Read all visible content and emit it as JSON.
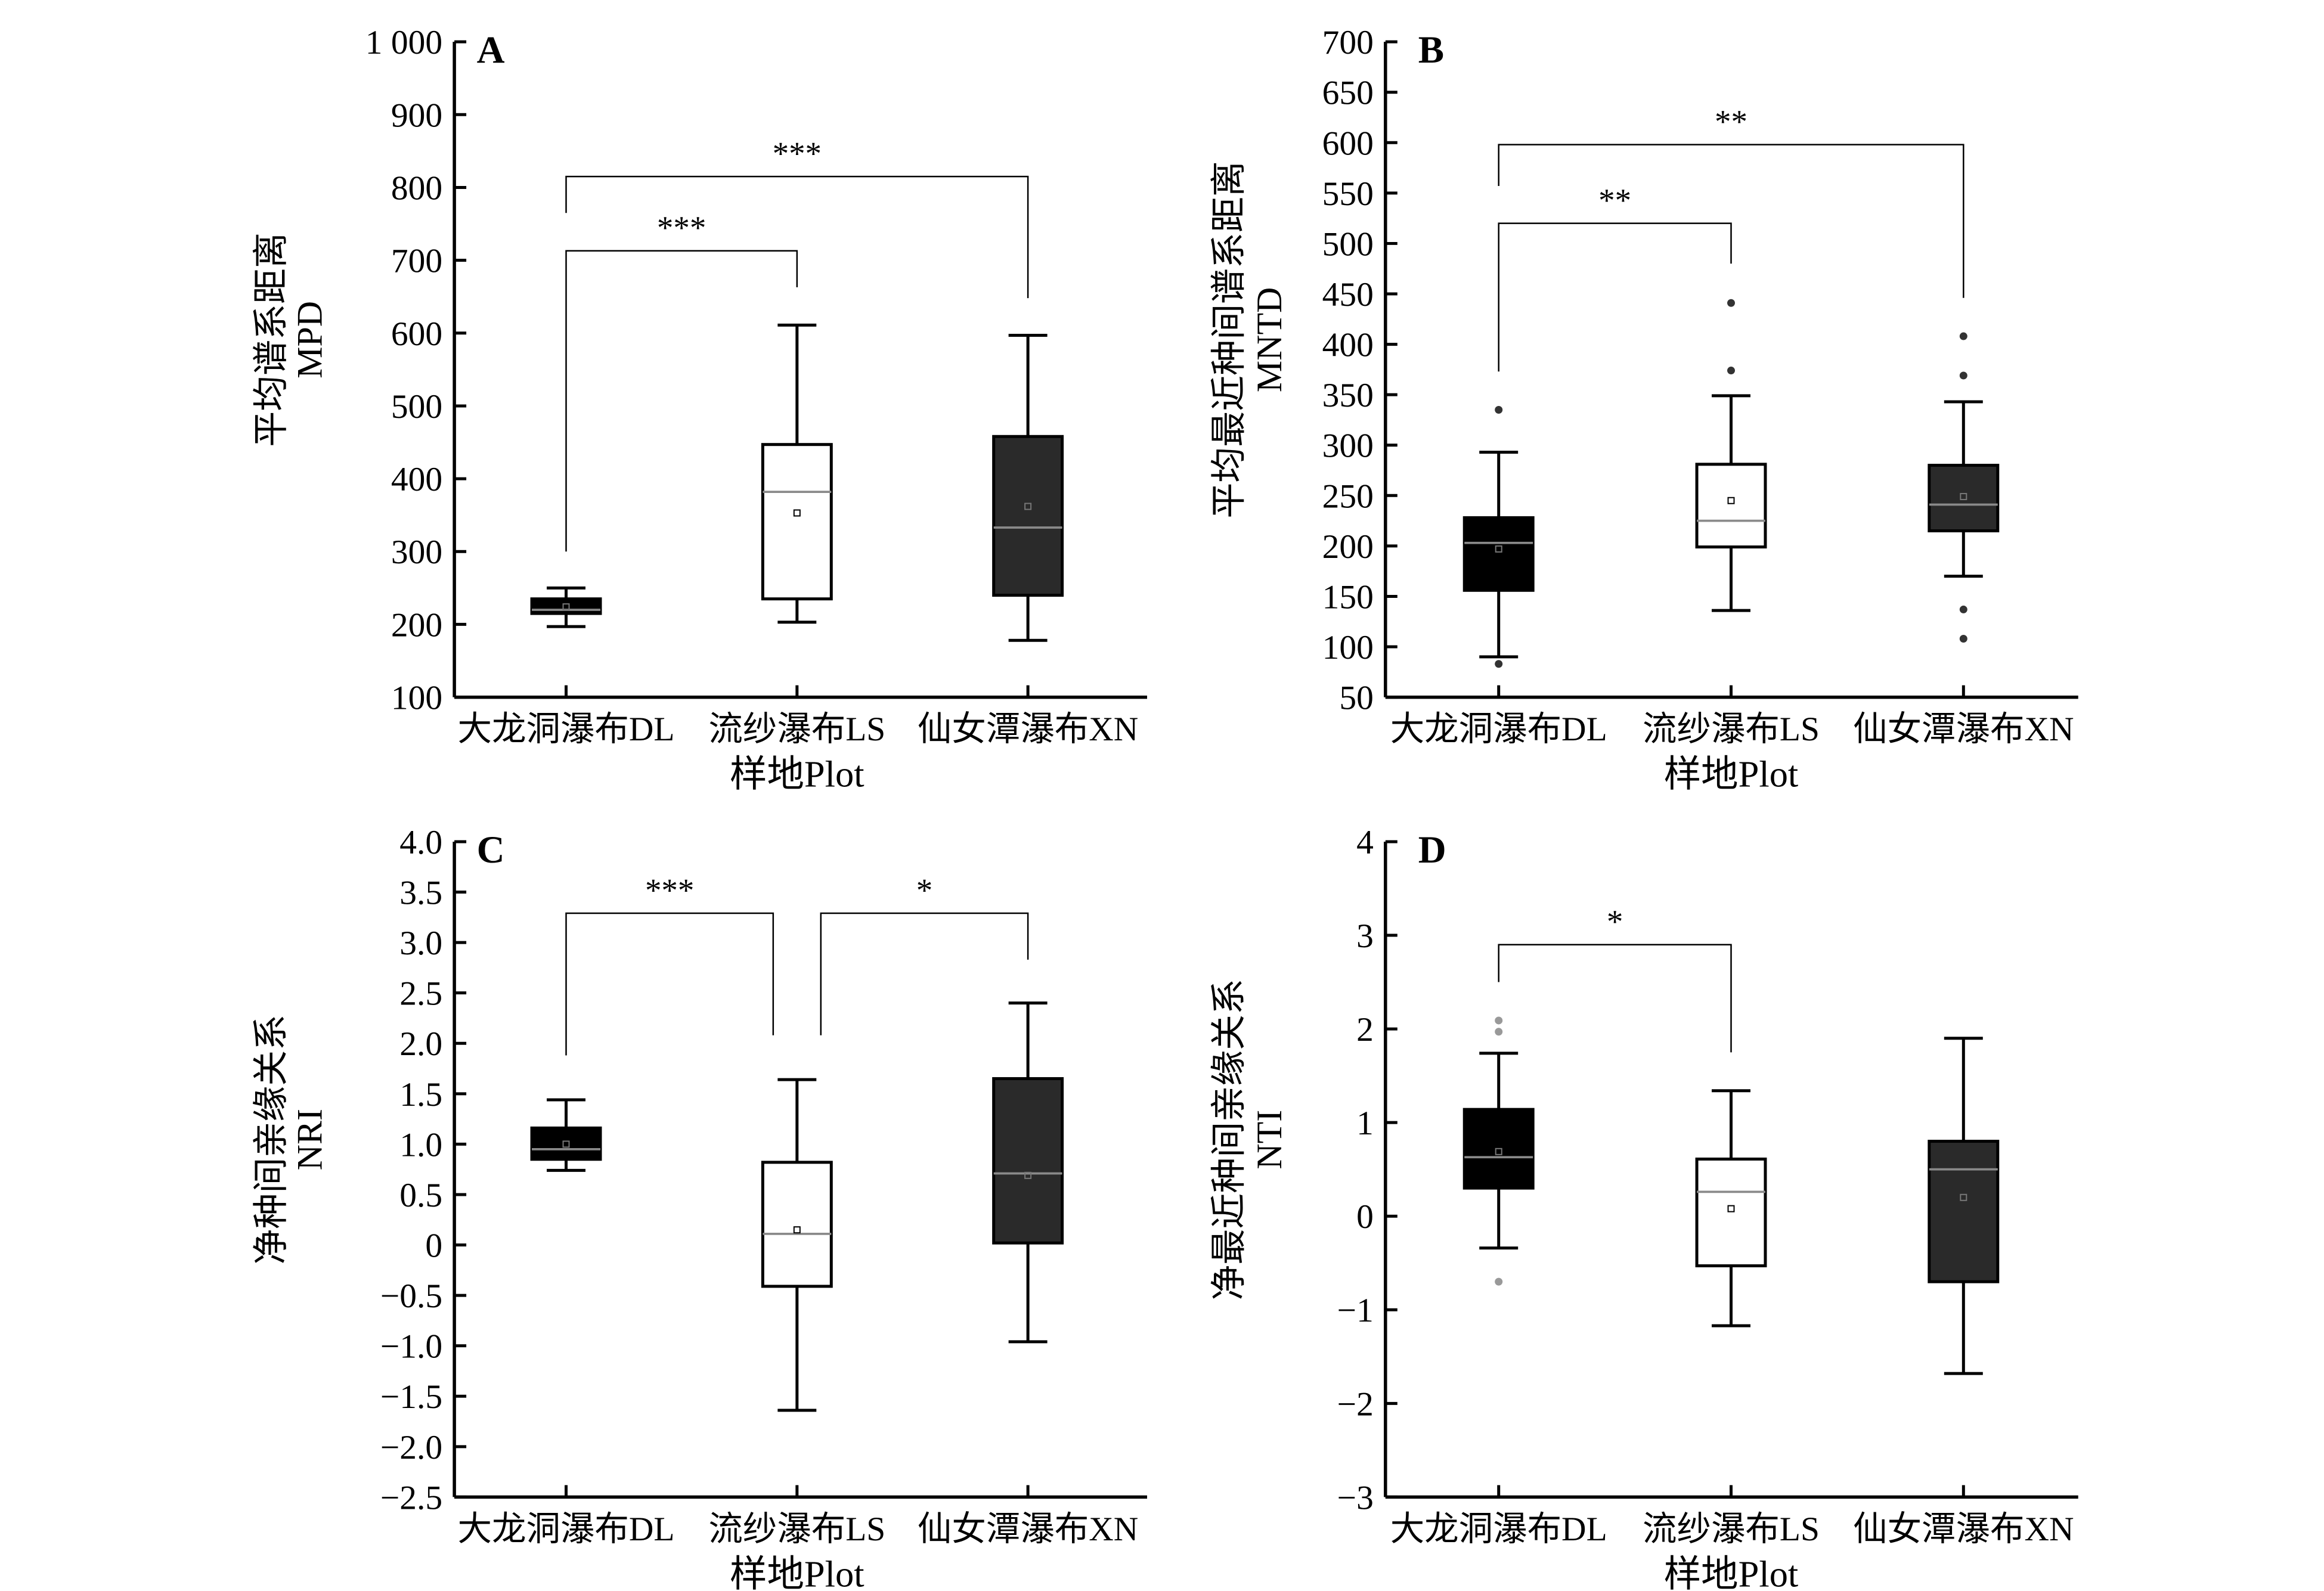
{
  "chart_data": [
    {
      "type": "box",
      "panel_label": "A",
      "ylabel": [
        "平均谱系距离",
        "MPD"
      ],
      "xlabel": "样地Plot",
      "categories": [
        "大龙洞瀑布DL",
        "流纱瀑布LS",
        "仙女潭瀑布XN"
      ],
      "ylim": [
        100,
        1000
      ],
      "yticks": [
        100,
        200,
        300,
        400,
        500,
        600,
        700,
        800,
        900,
        1000
      ],
      "ytick_labels": [
        "100",
        "200",
        "300",
        "400",
        "500",
        "600",
        "700",
        "800",
        "900",
        "1 000"
      ],
      "boxes": [
        {
          "min": 197,
          "q1": 215,
          "median": 220,
          "q3": 235,
          "max": 250,
          "mean": 224,
          "outliers": []
        },
        {
          "min": 203,
          "q1": 235,
          "median": 382,
          "q3": 447,
          "max": 611,
          "mean": 353,
          "outliers": []
        },
        {
          "min": 178,
          "q1": 240,
          "median": 333,
          "q3": 458,
          "max": 597,
          "mean": 362,
          "outliers": []
        }
      ],
      "brackets": [
        {
          "from": 0,
          "to": 1,
          "y": 713,
          "left_end": 300,
          "right_end": 663,
          "label": "***"
        },
        {
          "from": 0,
          "to": 2,
          "y": 815,
          "left_end": 765,
          "right_end": 648,
          "label": "***"
        }
      ]
    },
    {
      "type": "box",
      "panel_label": "B",
      "ylabel": [
        "平均最近种间谱系距离",
        "MNTD"
      ],
      "xlabel": "样地Plot",
      "categories": [
        "大龙洞瀑布DL",
        "流纱瀑布LS",
        "仙女潭瀑布XN"
      ],
      "ylim": [
        50,
        700
      ],
      "yticks": [
        50,
        100,
        150,
        200,
        250,
        300,
        350,
        400,
        450,
        500,
        550,
        600,
        650,
        700
      ],
      "ytick_labels": [
        "50",
        "100",
        "150",
        "200",
        "250",
        "300",
        "350",
        "400",
        "450",
        "500",
        "550",
        "600",
        "650",
        "700"
      ],
      "boxes": [
        {
          "min": 90,
          "q1": 156,
          "median": 203,
          "q3": 228,
          "max": 293,
          "mean": 197,
          "outliers": [
            335,
            83
          ]
        },
        {
          "min": 136,
          "q1": 199,
          "median": 225,
          "q3": 281,
          "max": 349,
          "mean": 245,
          "outliers": [
            441,
            374
          ]
        },
        {
          "min": 170,
          "q1": 215,
          "median": 241,
          "q3": 280,
          "max": 343,
          "mean": 249,
          "outliers": [
            408,
            369,
            137,
            108
          ]
        }
      ],
      "brackets": [
        {
          "from": 0,
          "to": 1,
          "y": 520,
          "left_end": 373,
          "right_end": 480,
          "label": "**"
        },
        {
          "from": 0,
          "to": 2,
          "y": 598,
          "left_end": 557,
          "right_end": 446,
          "label": "**"
        }
      ]
    },
    {
      "type": "box",
      "panel_label": "C",
      "ylabel": [
        "净种间亲缘关系",
        "NRI"
      ],
      "xlabel": "样地Plot",
      "categories": [
        "大龙洞瀑布DL",
        "流纱瀑布LS",
        "仙女潭瀑布XN"
      ],
      "ylim": [
        -2.5,
        4.0
      ],
      "yticks": [
        -2.5,
        -2.0,
        -1.5,
        -1.0,
        -0.5,
        0,
        0.5,
        1.0,
        1.5,
        2.0,
        2.5,
        3.0,
        3.5,
        4.0
      ],
      "ytick_labels": [
        "−2.5",
        "−2.0",
        "−1.5",
        "−1.0",
        "−0.5",
        "0",
        "0.5",
        "1.0",
        "1.5",
        "2.0",
        "2.5",
        "3.0",
        "3.5",
        "4.0"
      ],
      "boxes": [
        {
          "min": 0.74,
          "q1": 0.85,
          "median": 0.95,
          "q3": 1.16,
          "max": 1.44,
          "mean": 1.0,
          "outliers": []
        },
        {
          "min": -1.64,
          "q1": -0.41,
          "median": 0.11,
          "q3": 0.82,
          "max": 1.64,
          "mean": 0.15,
          "outliers": []
        },
        {
          "min": -0.96,
          "q1": 0.02,
          "median": 0.71,
          "q3": 1.65,
          "max": 2.4,
          "mean": 0.69,
          "outliers": []
        }
      ],
      "brackets": [
        {
          "from": 0,
          "to": 1,
          "y": 3.29,
          "left_end": 1.88,
          "right_end": 2.08,
          "label": "***",
          "right_shift": -1
        },
        {
          "from": 1,
          "to": 2,
          "y": 3.29,
          "left_end": 2.08,
          "right_end": 2.83,
          "label": "*",
          "left_shift": 1
        }
      ]
    },
    {
      "type": "box",
      "panel_label": "D",
      "ylabel": [
        "净最近种间亲缘关系",
        "NTI"
      ],
      "xlabel": "样地Plot",
      "categories": [
        "大龙洞瀑布DL",
        "流纱瀑布LS",
        "仙女潭瀑布XN"
      ],
      "ylim": [
        -3,
        4
      ],
      "yticks": [
        -3,
        -2,
        -1,
        0,
        1,
        2,
        3,
        4
      ],
      "ytick_labels": [
        "−3",
        "−2",
        "−1",
        "0",
        "1",
        "2",
        "3",
        "4"
      ],
      "boxes": [
        {
          "min": -0.34,
          "q1": 0.3,
          "median": 0.63,
          "q3": 1.14,
          "max": 1.74,
          "mean": 0.69,
          "outliers": [
            2.09,
            1.97,
            -0.7
          ]
        },
        {
          "min": -1.17,
          "q1": -0.53,
          "median": 0.26,
          "q3": 0.61,
          "max": 1.34,
          "mean": 0.08,
          "outliers": []
        },
        {
          "min": -1.68,
          "q1": -0.7,
          "median": 0.5,
          "q3": 0.8,
          "max": 1.9,
          "mean": 0.2,
          "outliers": []
        }
      ],
      "brackets": [
        {
          "from": 0,
          "to": 1,
          "y": 2.9,
          "left_end": 2.5,
          "right_end": 1.75,
          "label": "*"
        }
      ]
    }
  ],
  "colors": {
    "box_fills": [
      "#000000",
      "#ffffff",
      "#2a2a2a"
    ],
    "median_line": "#8a8a8a",
    "outlier": "#333333"
  }
}
